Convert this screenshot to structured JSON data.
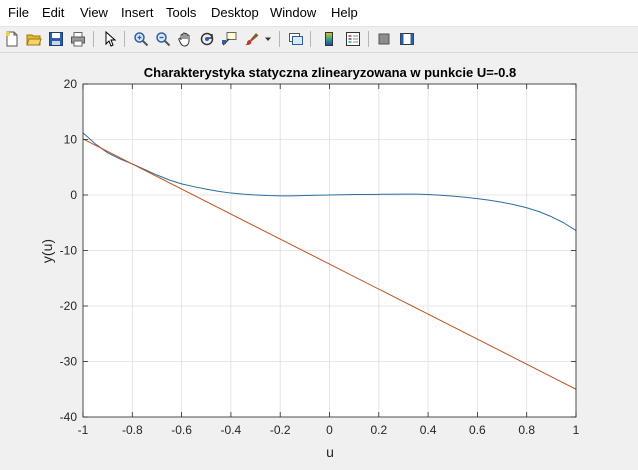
{
  "menu": {
    "items": [
      "File",
      "Edit",
      "View",
      "Insert",
      "Tools",
      "Desktop",
      "Window",
      "Help"
    ]
  },
  "toolbar": {
    "icons": [
      "new-figure-icon",
      "open-file-icon",
      "save-icon",
      "print-icon",
      "pointer-icon",
      "zoom-in-icon",
      "zoom-out-icon",
      "pan-hand-icon",
      "rotate-3d-icon",
      "data-cursor-icon",
      "brush-icon",
      "brush-dropdown-icon",
      "link-plot-icon",
      "colorbar-icon",
      "legend-icon",
      "hide-plot-tools-icon",
      "show-plot-tools-icon"
    ]
  },
  "colors": {
    "series_nonlinear": "#2a6f9a",
    "series_linear": "#c0501b"
  },
  "chart_data": {
    "type": "line",
    "title": "Charakterystyka statyczna zlinearyzowana w punkcie U=-0.8",
    "xlabel": "u",
    "ylabel": "y(u)",
    "xlim": [
      -1,
      1
    ],
    "ylim": [
      -40,
      20
    ],
    "xticks": [
      "-1",
      "-0.8",
      "-0.6",
      "-0.4",
      "-0.2",
      "0",
      "0.2",
      "0.4",
      "0.6",
      "0.8",
      "1"
    ],
    "yticks": [
      "-40",
      "-30",
      "-20",
      "-10",
      "0",
      "10",
      "20"
    ],
    "grid": true,
    "series": [
      {
        "x": [
          -1,
          -0.95,
          -0.9,
          -0.85,
          -0.8,
          -0.75,
          -0.7,
          -0.65,
          -0.6,
          -0.55,
          -0.5,
          -0.45,
          -0.4,
          -0.35,
          -0.3,
          -0.25,
          -0.2,
          -0.15,
          -0.1,
          -0.05,
          0,
          0.05,
          0.1,
          0.15,
          0.2,
          0.25,
          0.3,
          0.35,
          0.4,
          0.45,
          0.5,
          0.55,
          0.6,
          0.65,
          0.7,
          0.75,
          0.8,
          0.85,
          0.9,
          0.95,
          1
        ],
        "y": [
          11.2,
          9.2,
          7.6,
          6.5,
          5.6,
          4.6,
          3.6,
          2.7,
          2.0,
          1.5,
          1.05,
          0.65,
          0.35,
          0.15,
          0.0,
          -0.1,
          -0.15,
          -0.15,
          -0.1,
          -0.05,
          0.0,
          0.05,
          0.08,
          0.1,
          0.12,
          0.14,
          0.15,
          0.15,
          0.1,
          -0.05,
          -0.2,
          -0.4,
          -0.65,
          -0.95,
          -1.3,
          -1.75,
          -2.3,
          -3.0,
          -3.9,
          -5.0,
          -6.4
        ]
      },
      {
        "x": [
          -1,
          1
        ],
        "y": [
          10.1,
          -35.0
        ]
      }
    ]
  }
}
